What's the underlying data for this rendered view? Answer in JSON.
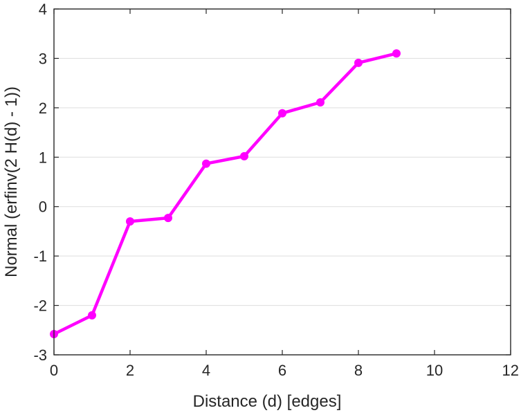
{
  "chart_data": {
    "type": "line",
    "title": "",
    "xlabel": "Distance (d) [edges]",
    "ylabel": "Normal (erfinv(2 H(d) - 1))",
    "xlim": [
      0,
      12
    ],
    "ylim": [
      -3,
      4
    ],
    "x_ticks": [
      0,
      2,
      4,
      6,
      8,
      10,
      12
    ],
    "y_ticks": [
      -3,
      -2,
      -1,
      0,
      1,
      2,
      3,
      4
    ],
    "x_tick_labels": [
      "0",
      "2",
      "4",
      "6",
      "8",
      "10",
      "12"
    ],
    "y_tick_labels": [
      "-3",
      "-2",
      "-1",
      "0",
      "1",
      "2",
      "3",
      "4"
    ],
    "grid": "horizontal",
    "series": [
      {
        "color": "#ff00ff",
        "marker": "circle",
        "x": [
          0,
          1,
          2,
          3,
          4,
          5,
          6,
          7,
          8,
          9
        ],
        "y": [
          -2.58,
          -2.2,
          -0.3,
          -0.23,
          0.87,
          1.02,
          1.89,
          2.11,
          2.91,
          3.1
        ]
      }
    ],
    "axis_color": "#262626",
    "grid_color": "#dddddd"
  }
}
